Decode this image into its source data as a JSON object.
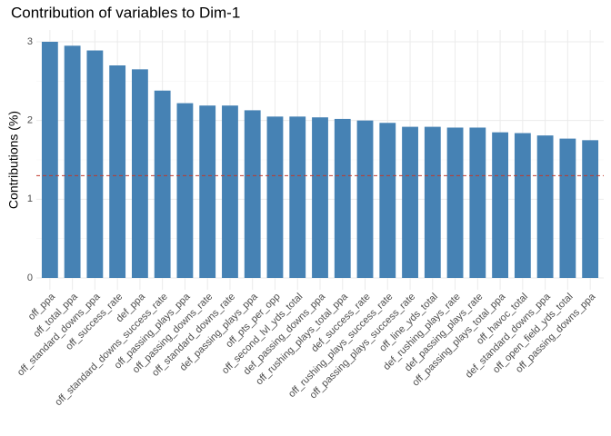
{
  "chart_data": {
    "type": "bar",
    "title": "Contribution of variables to Dim-1",
    "y_label": "Contributions (%)",
    "categories": [
      "off_ppa",
      "off_total_ppa",
      "off_standard_downs_ppa",
      "off_success_rate",
      "def_ppa",
      "off_standard_downs_success_rate",
      "off_passing_plays_ppa",
      "off_passing_downs_rate",
      "off_standard_downs_rate",
      "def_passing_plays_ppa",
      "off_pts_per_opp",
      "off_second_lvl_yds_total",
      "def_passing_downs_ppa",
      "off_rushing_plays_total_ppa",
      "def_success_rate",
      "off_rushing_plays_success_rate",
      "off_passing_plays_success_rate",
      "off_line_yds_total",
      "def_rushing_plays_rate",
      "def_passing_plays_rate",
      "off_passing_plays_total_ppa",
      "off_havoc_total",
      "def_standard_downs_ppa",
      "off_open_field_yds_total",
      "off_passing_downs_ppa"
    ],
    "values": [
      3.0,
      2.95,
      2.89,
      2.7,
      2.65,
      2.38,
      2.22,
      2.19,
      2.19,
      2.13,
      2.05,
      2.05,
      2.04,
      2.02,
      2.0,
      1.97,
      1.92,
      1.92,
      1.91,
      1.91,
      1.85,
      1.84,
      1.81,
      1.77,
      1.75
    ],
    "color": "#4682b4",
    "reference_line": 1.3,
    "reference_color": "#c0392b",
    "ylim": [
      -0.15,
      3.15
    ],
    "yticks": [
      0,
      1,
      2,
      3
    ],
    "yminorticks": [
      0.5,
      1.5,
      2.5
    ],
    "grid": true
  }
}
